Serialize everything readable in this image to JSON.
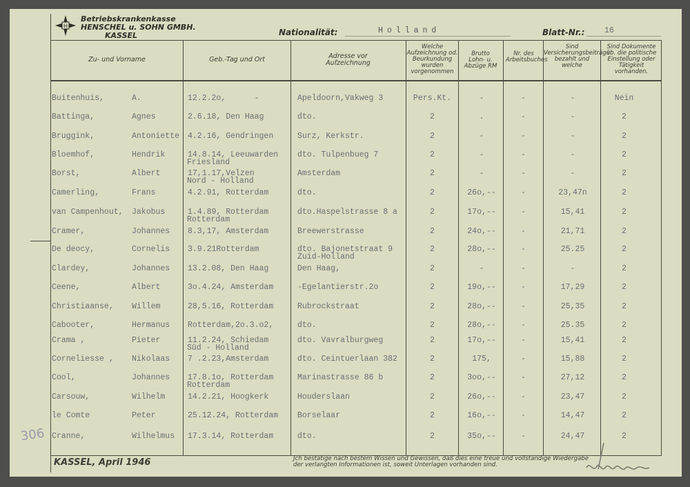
{
  "letterhead": {
    "line1": "Betriebskrankenkasse",
    "line2": "HENSCHEL u. SOHN GMBH.",
    "line3": "KASSEL",
    "logo": "star-logo-icon"
  },
  "nationality": {
    "label": "Nationalität:",
    "value": "Holland"
  },
  "sheet": {
    "label": "Blatt-Nr.:",
    "value": "16"
  },
  "columns": [
    "Zu- und Vorname",
    "Geb.-Tag und Ort",
    "Adresse vor Aufzeichnung",
    "Welche Aufzeichnung od. Beurkundung wurden vorgenommen",
    "Brutto Lohn- u. Abzüge RM",
    "Nr. des Arbeitsbuches",
    "Sind Versicherungsbeiträge bezahlt und welche",
    "Sind Dokumente üb. die politische Einstellung oder Tätigkeit vorhanden."
  ],
  "rows": [
    {
      "surname": "Buitenhuis,",
      "first": "A.",
      "birth": "12.2.2o,      -",
      "birth2": "",
      "address": "Apeldoorn,Vakweg 3",
      "address2": "",
      "record": "Pers.Kt.",
      "gross": "-",
      "book": "-",
      "insurance": "-",
      "documents": "Nein"
    },
    {
      "surname": "Battinga,",
      "first": "Agnes",
      "birth": "2.6.18, Den Haag",
      "birth2": "",
      "address": "dto.",
      "address2": "",
      "record": "2",
      "gross": ".",
      "book": "-",
      "insurance": "-",
      "documents": "2"
    },
    {
      "surname": "Bruggink,",
      "first": "Antoniette",
      "birth": "4.2.16, Gendringen",
      "birth2": "",
      "address": "Surz, Kerkstr.",
      "address2": "",
      "record": "2",
      "gross": "-",
      "book": "-",
      "insurance": "-",
      "documents": "2"
    },
    {
      "surname": "Bloemhof,",
      "first": "Hendrik",
      "birth": "14.8.14, Leeuwarden",
      "birth2": "Friesland",
      "address": "dto. Tulpenbueg 7",
      "address2": "",
      "record": "2",
      "gross": "-",
      "book": "-",
      "insurance": "-",
      "documents": "2"
    },
    {
      "surname": "Borst,",
      "first": "Albert",
      "birth": "17,1.17,Velzen",
      "birth2": "Nord - Holland",
      "address": "Amsterdam",
      "address2": "",
      "record": "2",
      "gross": "-",
      "book": "-",
      "insurance": "-",
      "documents": "2"
    },
    {
      "surname": "Camerling,",
      "first": "Frans",
      "birth": "4.2.91, Rotterdam",
      "birth2": "",
      "address": "dto.",
      "address2": "",
      "record": "2",
      "gross": "26o,--",
      "book": "-",
      "insurance": "23,47n",
      "documents": "2"
    },
    {
      "surname": "van Campenhout,",
      "first": "Jakobus",
      "birth": "1.4.89, Rotterdam",
      "birth2": "Rotterdam",
      "address": "dto.Haspelstrasse 8 a",
      "address2": "",
      "record": "2",
      "gross": "17o,--",
      "book": "-",
      "insurance": "15,41",
      "documents": "2"
    },
    {
      "surname": "Cramer,",
      "first": "Johannes",
      "birth": "8.3,17, Amsterdam",
      "birth2": "",
      "address": "Breewerstrasse",
      "address2": "",
      "record": "2",
      "gross": "24o,--",
      "book": "-",
      "insurance": "21,71",
      "documents": "2"
    },
    {
      "surname": "De deocy,",
      "first": "Cornelis",
      "birth": "3.9.21Rotterdam",
      "birth2": "",
      "address": "dto. Bajonetstraat 9",
      "address2": "Zuid-Holland",
      "record": "2",
      "gross": "28o,--",
      "book": "-",
      "insurance": "25.25",
      "documents": "2"
    },
    {
      "surname": "Clardey,",
      "first": "Johannes",
      "birth": "13.2.08, Den Haag",
      "birth2": "",
      "address": "Den Haag,",
      "address2": "",
      "record": "2",
      "gross": "-",
      "book": "-",
      "insurance": "-",
      "documents": "2"
    },
    {
      "surname": "Ceene,",
      "first": "Albert",
      "birth": "3o.4.24, Amsterdam",
      "birth2": "",
      "address": "-Egelantierstr.2o",
      "address2": "",
      "record": "2",
      "gross": "19o,--",
      "book": "-",
      "insurance": "17,29",
      "documents": "2"
    },
    {
      "surname": "Christiaanse,",
      "first": "Willem",
      "birth": "28,5.16, Rotterdam",
      "birth2": "",
      "address": "Rubrockstraat",
      "address2": "",
      "record": "2",
      "gross": "28o,--",
      "book": "-",
      "insurance": "25,35",
      "documents": "2"
    },
    {
      "surname": "Cabooter,",
      "first": "Hermanus",
      "birth": "Rotterdam,2o.3.o2,",
      "birth2": "",
      "address": "dto.",
      "address2": "",
      "record": "2",
      "gross": "28o,--",
      "book": "-",
      "insurance": "25.35",
      "documents": "2"
    },
    {
      "surname": "Crama ,",
      "first": "Pieter",
      "birth": "11.2.24, Schiedam",
      "birth2": "Süd - Holland",
      "address": "dto. Vavralburgweg",
      "address2": "",
      "record": "2",
      "gross": "17o,--",
      "book": "-",
      "insurance": "15,41",
      "documents": "2"
    },
    {
      "surname": "Corneliesse ,",
      "first": "Nikolaas",
      "birth": "7 .2.23,Amsterdam",
      "birth2": "",
      "address": "dto. Ceintuerlaan 382",
      "address2": "",
      "record": "2",
      "gross": "175,",
      "book": "-",
      "insurance": "15,88",
      "documents": "2"
    },
    {
      "surname": "Cool,",
      "first": "Johannes",
      "birth": "17.8.1o, Rotterdam",
      "birth2": "Rotterdam",
      "address": "Marinastrasse 86 b",
      "address2": "",
      "record": "2",
      "gross": "3oo,--",
      "book": "-",
      "insurance": "27,12",
      "documents": "2"
    },
    {
      "surname": "Carsouw,",
      "first": "Wilhelm",
      "birth": "14.2.21, Hoogkerk",
      "birth2": "",
      "address": "Houderslaan",
      "address2": "",
      "record": "2",
      "gross": "26o,--",
      "book": "-",
      "insurance": "23,47",
      "documents": "2"
    },
    {
      "surname": "le Comte",
      "first": "Peter",
      "birth": "25.12.24, Rotterdam",
      "birth2": "",
      "address": "Borselaar",
      "address2": "",
      "record": "2",
      "gross": "16o,--",
      "book": "-",
      "insurance": "14,47",
      "documents": "2"
    },
    {
      "surname": "Cranne,",
      "first": "Wilhelmus",
      "birth": "17.3.14, Rotterdam",
      "birth2": "",
      "address": "dto.",
      "address2": "",
      "record": "2",
      "gross": "35o,--",
      "book": "-",
      "insurance": "24,47",
      "documents": "2"
    }
  ],
  "footer": {
    "place_date": "KASSEL, April 1946",
    "declaration_line1": "Jch bestätige nach bestem Wissen und Gewissen, daß dies eine treue und vollständige Wiedergabe",
    "declaration_line2": "der verlangten Informationen ist, soweit Unterlagen vorhanden sind.",
    "signature": "signature"
  },
  "margin_note": "306"
}
